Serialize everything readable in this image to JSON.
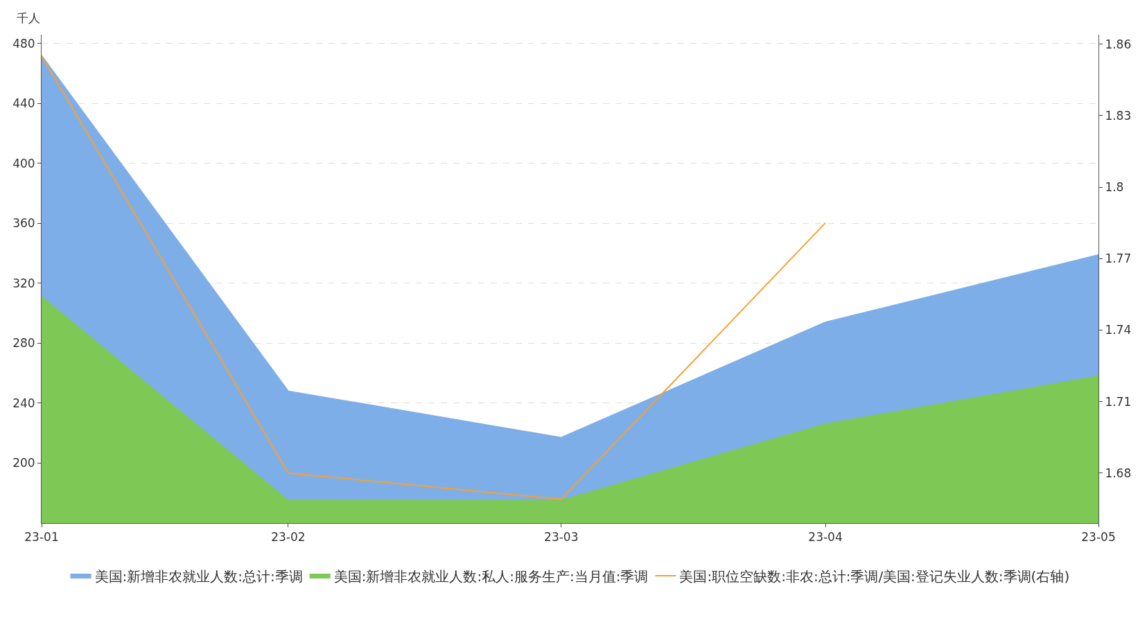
{
  "chart_data": {
    "type": "area",
    "ylabel": "千人",
    "x": [
      "--01-31",
      "--02-28",
      "--03-31",
      "--04-30",
      "--05-31"
    ],
    "series": [
      {
        "name": "美国:新增非农就业人数:总计:季调",
        "color": "#7eaee8",
        "values": [
          472,
          248,
          217,
          294,
          339
        ]
      },
      {
        "name": "美国:新增非农就业人数:私人:服务生产:当月值:季调",
        "color": "#7ec855",
        "values": [
          311,
          175,
          175,
          226,
          258
        ]
      },
      {
        "name": "美国:职位空缺数:非农:总计:季调/美国:登记失业人数:季调(右轴)",
        "type": "line",
        "axis": "y2",
        "color": "#f5a030",
        "values": [
          1.855,
          1.68,
          1.669,
          1.785,
          null
        ]
      }
    ],
    "xlim": [
      "--01-31",
      "--05-31"
    ],
    "xticks": [
      {
        "value": "--01-31",
        "label": "23-01"
      },
      {
        "value": "--02-28",
        "label": "23-02"
      },
      {
        "value": "--03-31",
        "label": "23-03"
      },
      {
        "value": "--04-30",
        "label": "23-04"
      },
      {
        "value": "--05-31",
        "label": "23-05"
      }
    ],
    "ylim": [
      160,
      486
    ],
    "yticks": [
      200,
      240,
      280,
      320,
      360,
      400,
      440,
      480
    ],
    "y2lim": [
      1.659,
      1.864
    ],
    "y2ticks": [
      1.68,
      1.71,
      1.74,
      1.77,
      1.8,
      1.83,
      1.86
    ],
    "grid": "y",
    "legend": "bottom"
  }
}
